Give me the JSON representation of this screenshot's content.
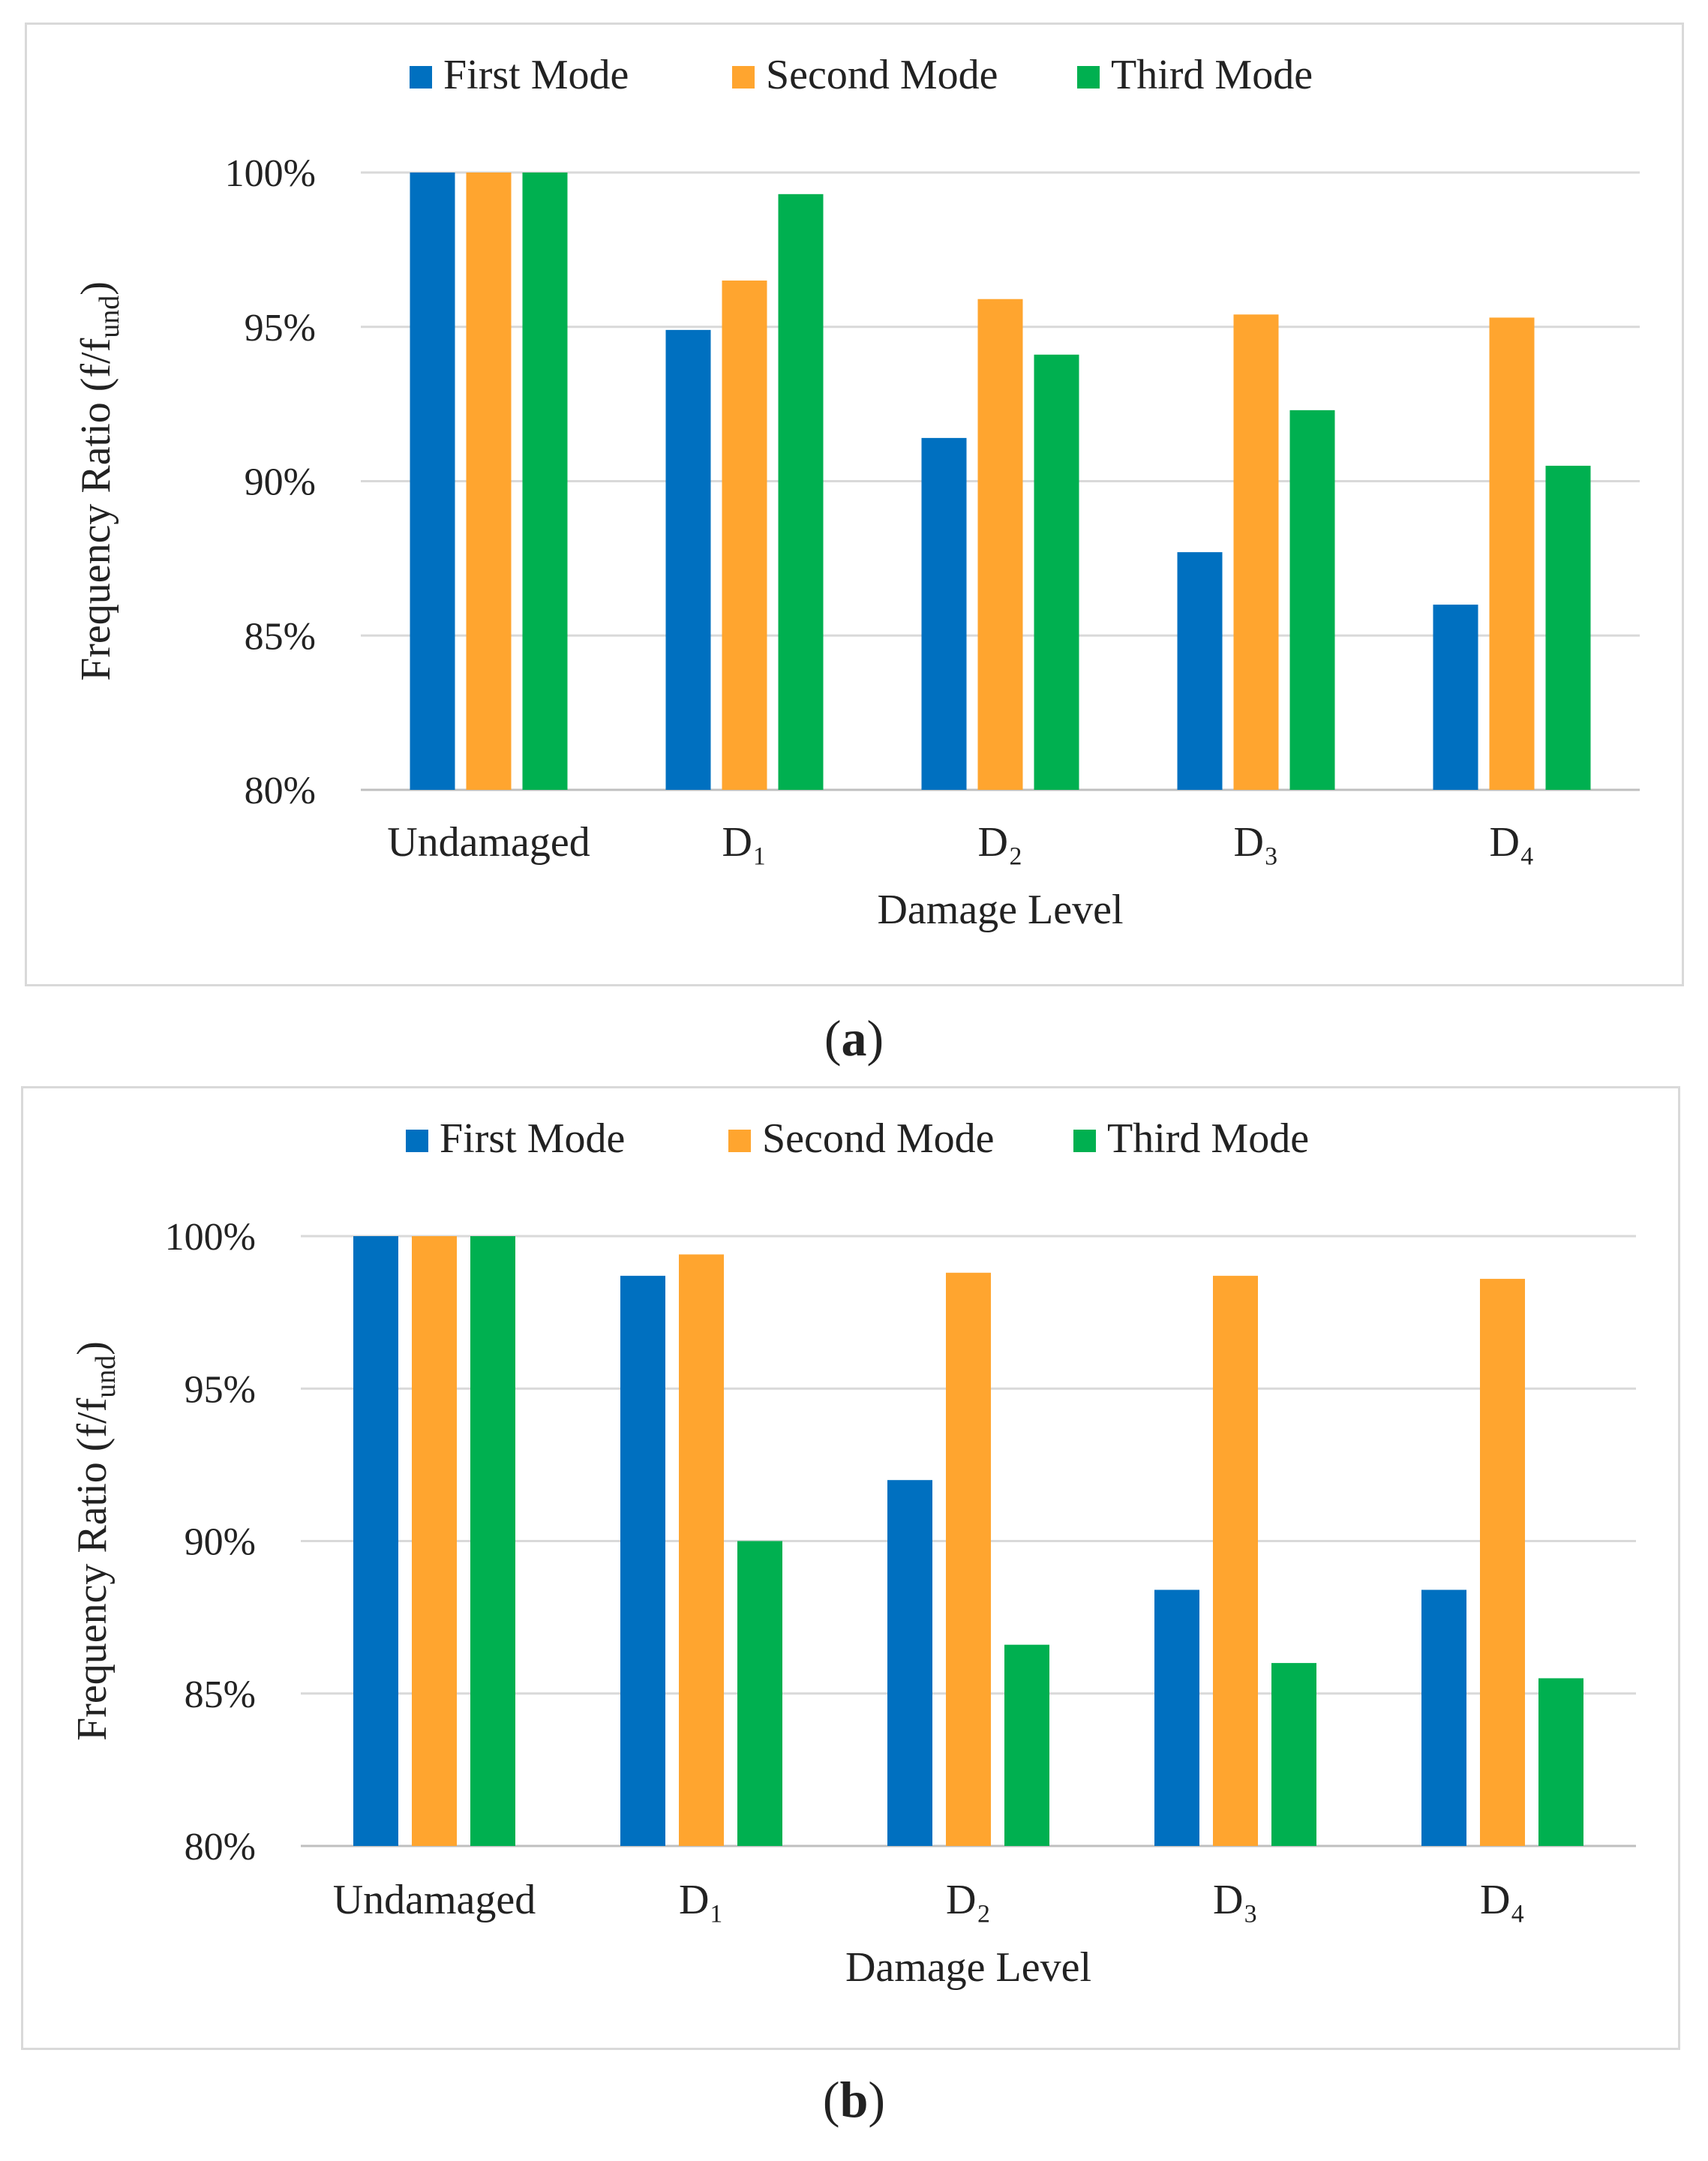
{
  "chart_data": [
    {
      "type": "bar",
      "panel": "a",
      "categories": [
        "Undamaged",
        "D₁",
        "D₂",
        "D₃",
        "D₄"
      ],
      "series": [
        {
          "name": "First Mode",
          "color": "#0070c0",
          "values": [
            100,
            94.9,
            91.4,
            87.7,
            86.0
          ]
        },
        {
          "name": "Second Mode",
          "color": "#ffa52f",
          "values": [
            100,
            96.5,
            95.9,
            95.4,
            95.3
          ]
        },
        {
          "name": "Third Mode",
          "color": "#00b050",
          "values": [
            100,
            99.3,
            94.1,
            92.3,
            90.5
          ]
        }
      ],
      "yticks": [
        "80%",
        "85%",
        "90%",
        "95%",
        "100%"
      ],
      "ylim": [
        80,
        100
      ],
      "xlabel": "Damage Level",
      "ylabel": "Frequency Ratio (f/f",
      "ylabel_sub": "und",
      "ylabel_end": ")",
      "legend_position": "top-center",
      "grid": true
    },
    {
      "type": "bar",
      "panel": "b",
      "categories": [
        "Undamaged",
        "D₁",
        "D₂",
        "D₃",
        "D₄"
      ],
      "series": [
        {
          "name": "First Mode",
          "color": "#0070c0",
          "values": [
            100,
            98.7,
            92.0,
            88.4,
            88.4
          ]
        },
        {
          "name": "Second Mode",
          "color": "#ffa52f",
          "values": [
            100,
            99.4,
            98.8,
            98.7,
            98.6
          ]
        },
        {
          "name": "Third Mode",
          "color": "#00b050",
          "values": [
            100,
            90.0,
            86.6,
            86.0,
            85.5
          ]
        }
      ],
      "yticks": [
        "80%",
        "85%",
        "90%",
        "95%",
        "100%"
      ],
      "ylim": [
        80,
        100
      ],
      "xlabel": "Damage Level",
      "ylabel": "Frequency Ratio (f/f",
      "ylabel_sub": "und",
      "ylabel_end": ")",
      "legend_position": "top-center",
      "grid": true
    }
  ],
  "captions": {
    "a_open": "(",
    "a_letter": "a",
    "a_close": ")",
    "b_open": "(",
    "b_letter": "b",
    "b_close": ")"
  }
}
